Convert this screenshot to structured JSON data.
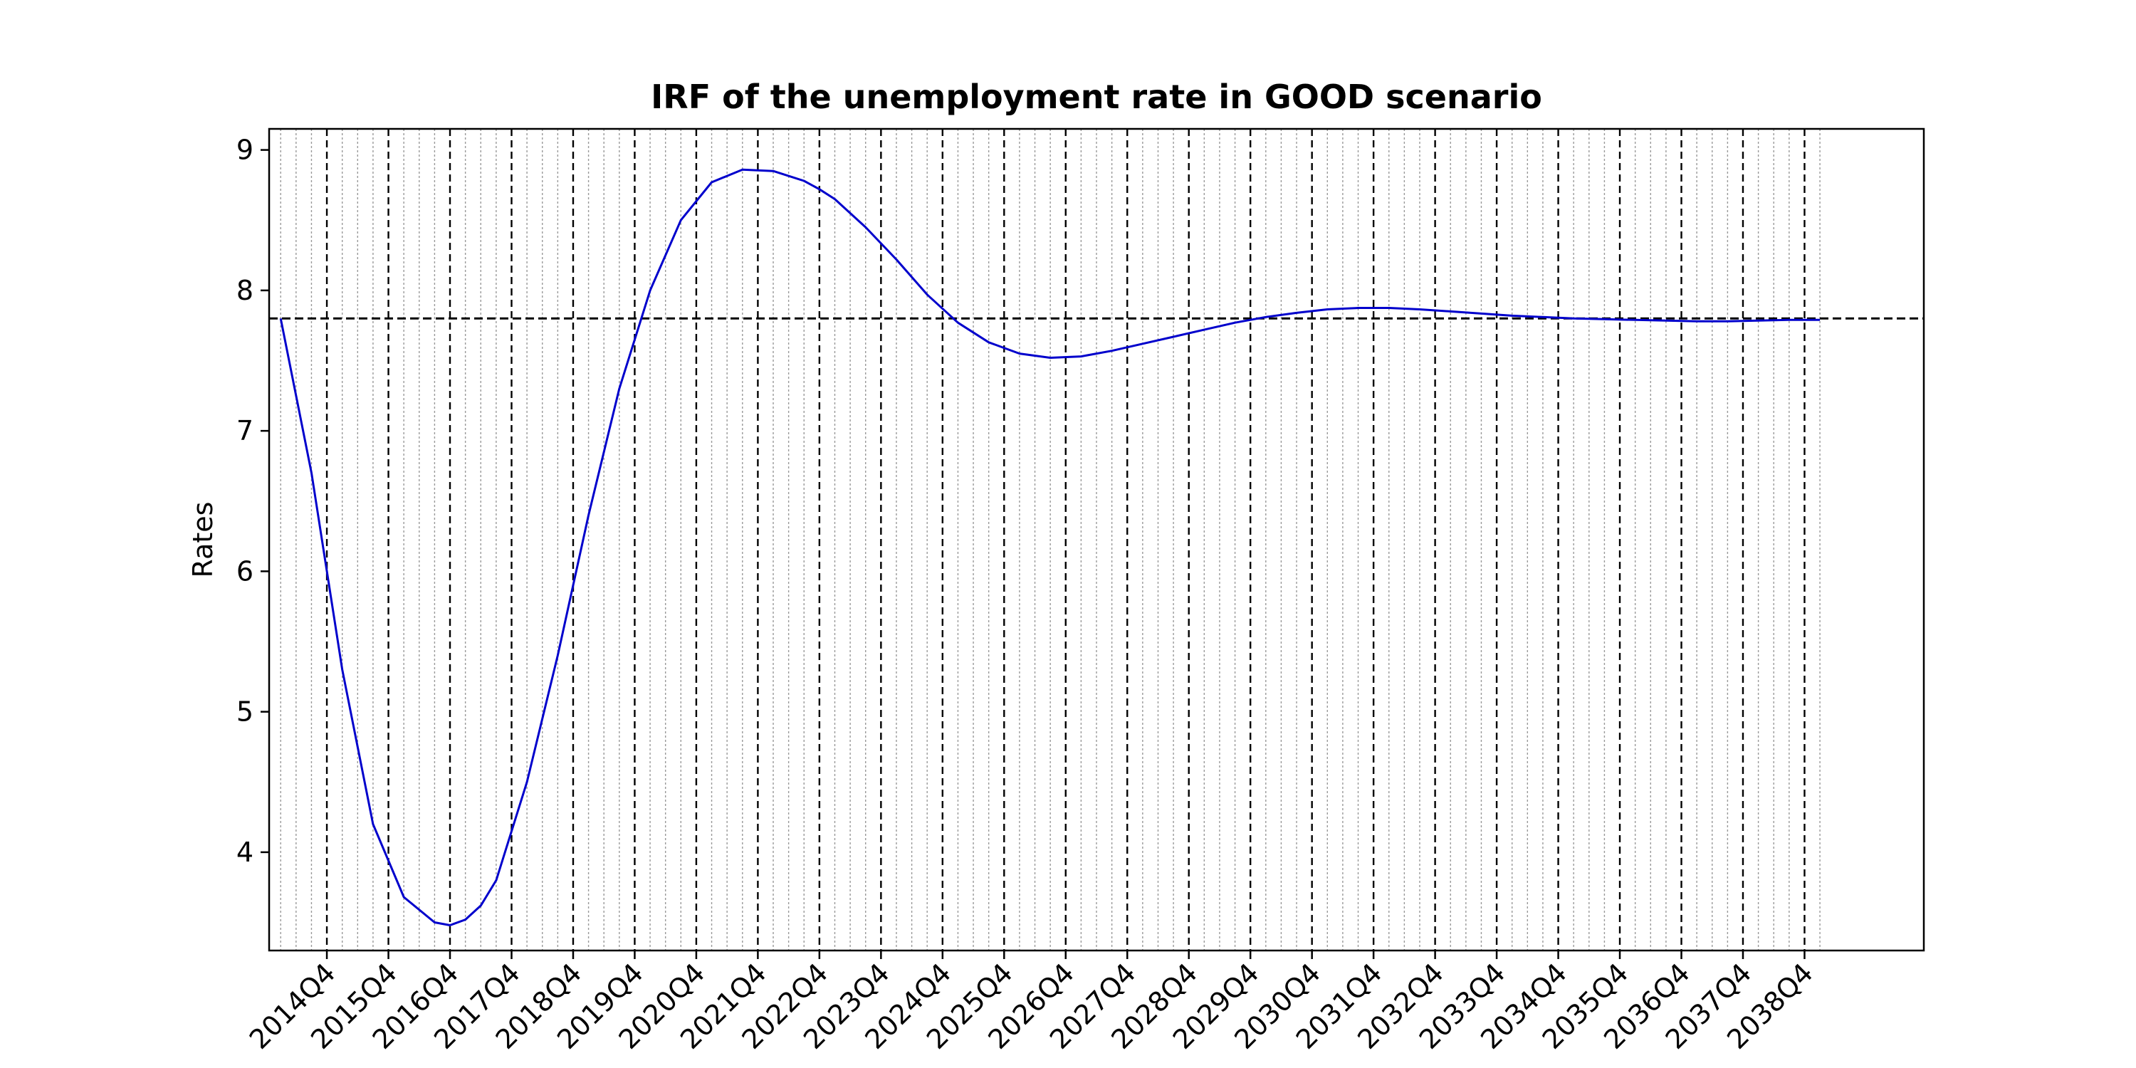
{
  "chart_data": {
    "type": "line",
    "title": "IRF of the unemployment rate in GOOD scenario",
    "xlabel": "",
    "ylabel": "Rates",
    "ylim": [
      3.3,
      9.15
    ],
    "yticks": [
      4,
      5,
      6,
      7,
      8,
      9
    ],
    "x_range_quarters": [
      -0.75,
      106.75
    ],
    "year_ticks": [
      "2014Q4",
      "2015Q4",
      "2016Q4",
      "2017Q4",
      "2018Q4",
      "2019Q4",
      "2020Q4",
      "2021Q4",
      "2022Q4",
      "2023Q4",
      "2024Q4",
      "2025Q4",
      "2026Q4",
      "2027Q4",
      "2028Q4",
      "2029Q4",
      "2030Q4",
      "2031Q4",
      "2032Q4",
      "2033Q4",
      "2034Q4",
      "2035Q4",
      "2036Q4",
      "2037Q4",
      "2038Q4"
    ],
    "year_tick_quarter_index": [
      3,
      7,
      11,
      15,
      19,
      23,
      27,
      31,
      35,
      39,
      43,
      47,
      51,
      55,
      59,
      63,
      67,
      71,
      75,
      79,
      83,
      87,
      91,
      95,
      99
    ],
    "quarter_gridlines": {
      "from": 0,
      "to": 100,
      "style": "dotted",
      "color": "#999999"
    },
    "year_gridlines": {
      "style": "dashed",
      "color": "#000000"
    },
    "reference_line": {
      "y": 7.8,
      "style": "dashed",
      "color": "#000000"
    },
    "series": [
      {
        "color": "#0000cc",
        "x": [
          0,
          2,
          4,
          6,
          8,
          10,
          11,
          12,
          13,
          14,
          16,
          18,
          20,
          22,
          24,
          26,
          28,
          30,
          32,
          34,
          35,
          36,
          38,
          40,
          42,
          44,
          46,
          48,
          50,
          52,
          54,
          56,
          58,
          60,
          62,
          64,
          66,
          68,
          70,
          72,
          74,
          76,
          78,
          80,
          82,
          84,
          86,
          88,
          90,
          92,
          94,
          96,
          98,
          100
        ],
        "y": [
          7.8,
          6.7,
          5.3,
          4.2,
          3.68,
          3.5,
          3.48,
          3.52,
          3.62,
          3.8,
          4.5,
          5.4,
          6.4,
          7.3,
          8.0,
          8.5,
          8.77,
          8.86,
          8.85,
          8.78,
          8.72,
          8.65,
          8.45,
          8.22,
          7.97,
          7.77,
          7.63,
          7.55,
          7.52,
          7.53,
          7.57,
          7.62,
          7.67,
          7.72,
          7.77,
          7.81,
          7.84,
          7.865,
          7.875,
          7.875,
          7.865,
          7.85,
          7.835,
          7.82,
          7.81,
          7.8,
          7.795,
          7.79,
          7.785,
          7.78,
          7.78,
          7.785,
          7.79,
          7.79
        ]
      }
    ],
    "grid": false,
    "legend": "none"
  }
}
